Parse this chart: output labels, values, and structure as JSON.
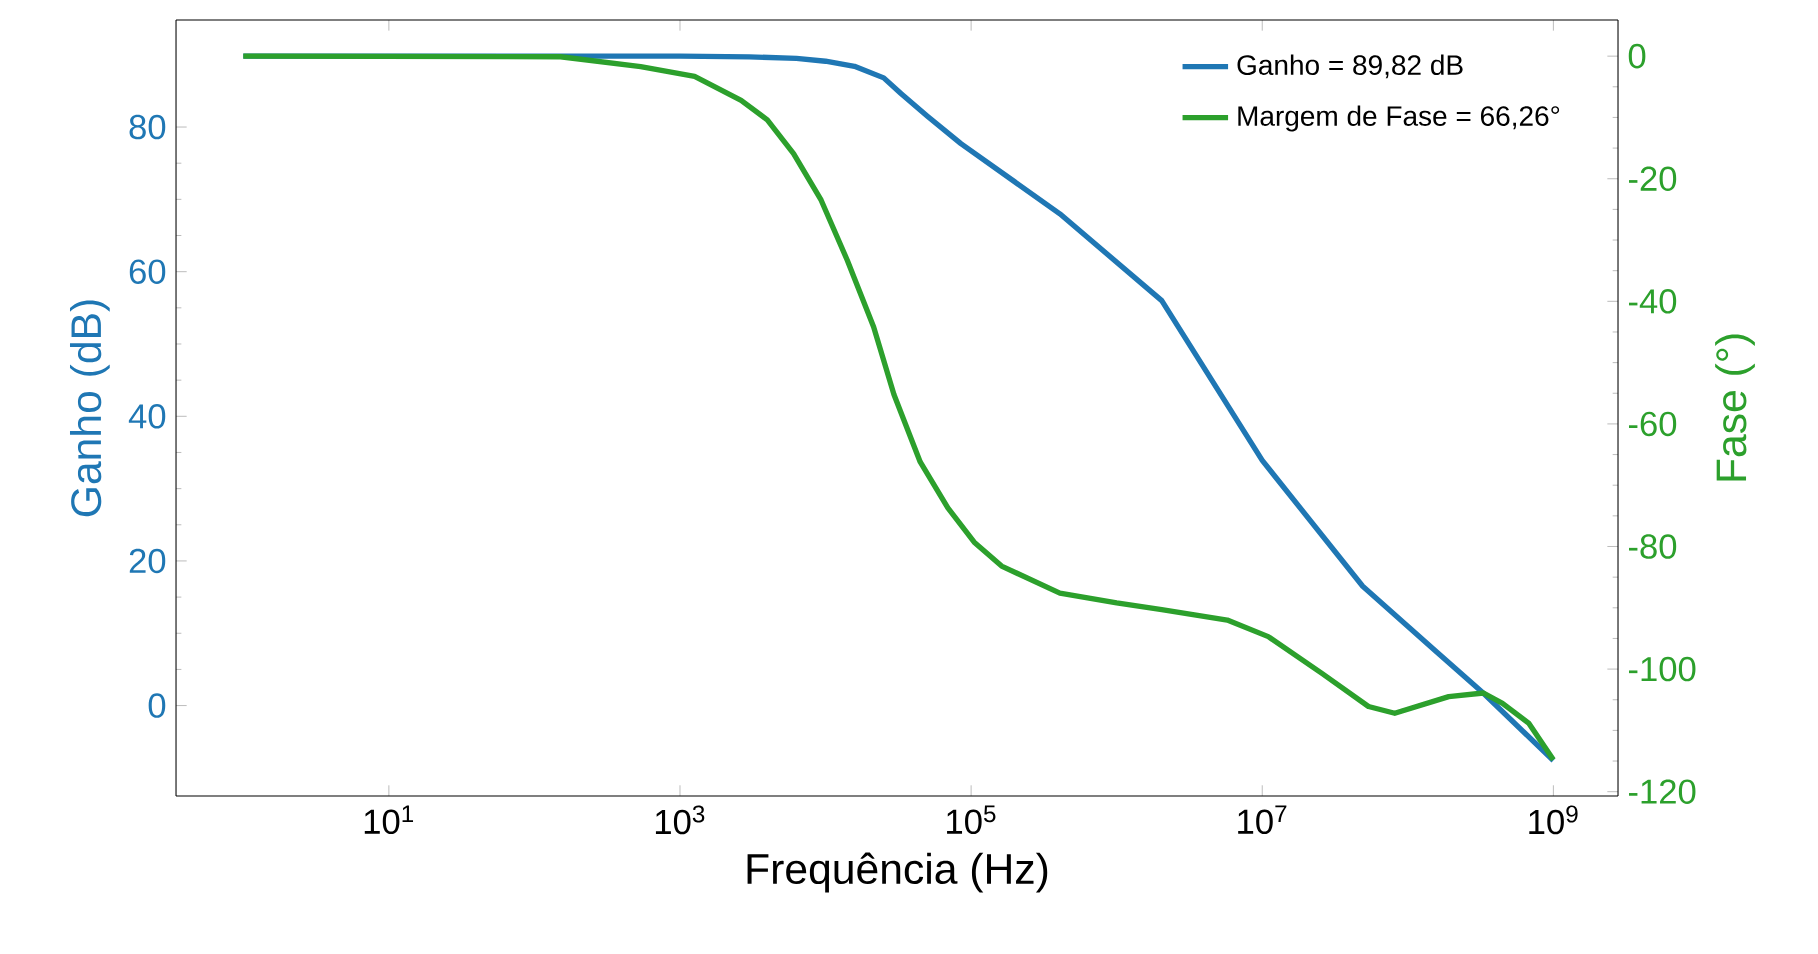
{
  "chart_data": {
    "type": "line",
    "xlabel": "Frequência (Hz)",
    "ylabel": "Ganho (dB)",
    "y2label": "Fase (°)",
    "log": "x",
    "xlim": [
      0.345,
      2780000000.0
    ],
    "xticks": [
      {
        "value": 10,
        "label": "10$^{1}$"
      },
      {
        "value": 1000,
        "label": "10$^{3}$"
      },
      {
        "value": 100000,
        "label": "10$^{5}$"
      },
      {
        "value": 10000000,
        "label": "10$^{7}$"
      },
      {
        "value": 1000000000,
        "label": "10$^{9}$"
      }
    ],
    "ylim": [
      -12.5,
      94.8
    ],
    "yticks": [
      0,
      20,
      40,
      60,
      80
    ],
    "y2lim": [
      -120.7,
      5.9
    ],
    "y2ticks": [
      0,
      -20,
      -40,
      -60,
      -80,
      -100,
      -120
    ],
    "legend": "top right",
    "grid": false,
    "series": [
      {
        "name": "Ganho = 89,82 dB",
        "color": "#1f77b4",
        "x": [
          1,
          100,
          1000,
          3000,
          6310,
          10000,
          15800,
          25100,
          33100,
          50100,
          85100,
          407000,
          2040000,
          10000000,
          49000000,
          158000000,
          331000000,
          1000000000
        ],
        "values": [
          89.8,
          89.8,
          89.8,
          89.7,
          89.5,
          89.1,
          88.4,
          86.8,
          84.6,
          81.5,
          77.7,
          68,
          56,
          33.9,
          16.5,
          7.4,
          1.7,
          -7.6
        ]
      },
      {
        "name": "Margem de Fase = 66,26°",
        "color": "#2ca02c",
        "axis": "y2",
        "x": [
          1,
          151,
          537,
          1260,
          2630,
          3980,
          6030,
          9330,
          14100,
          21400,
          29500,
          44700,
          69200,
          105000,
          162000,
          407000,
          1000000,
          2040000,
          5750000,
          11000000,
          25700000,
          53700000,
          81300000,
          191000000,
          331000000,
          447000000,
          676000000,
          1000000000
        ],
        "values": [
          0,
          -0.1,
          -1.7,
          -3.3,
          -7.2,
          -10.4,
          -15.9,
          -23.5,
          -33.3,
          -44.2,
          -55.2,
          -66.2,
          -73.7,
          -79.3,
          -83.2,
          -87.6,
          -89.2,
          -90.3,
          -92,
          -94.7,
          -100.7,
          -106.1,
          -107.2,
          -104.5,
          -103.9,
          -105.6,
          -108.8,
          -114.8
        ]
      }
    ]
  }
}
